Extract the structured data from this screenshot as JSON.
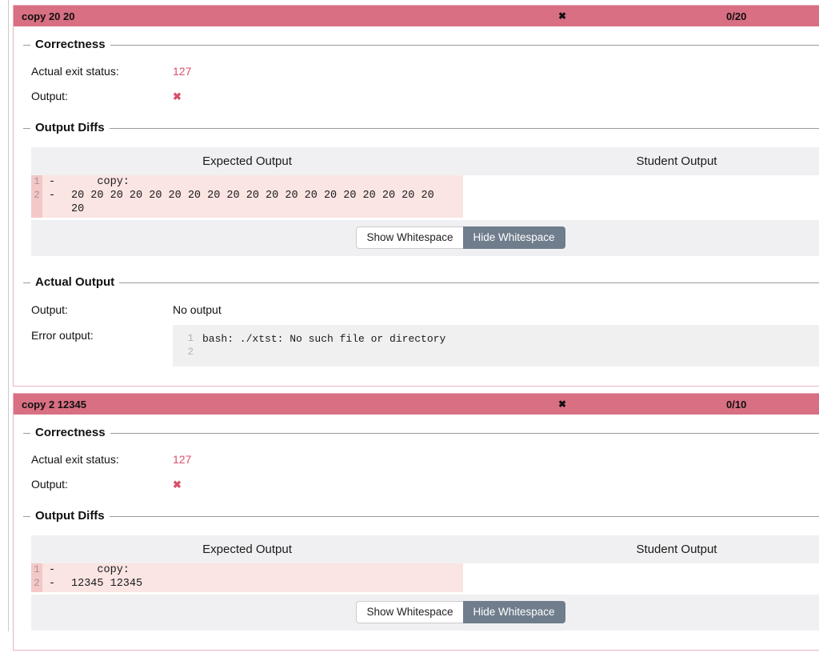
{
  "icons": {
    "x_mark": "✖"
  },
  "colors": {
    "header_bg": "#d96f82",
    "panel_border": "#e9b3be",
    "rose_text": "#d8506a",
    "diff_row_bg": "#fae5e3",
    "diff_gutter_bg": "#f4c8c8",
    "table_gray_bg": "#f0f0f2",
    "code_block_bg": "#f0f0f0",
    "hide_button_bg": "#6f7d8c"
  },
  "tests": [
    {
      "title": "copy 20 20",
      "score": "0/20",
      "correctness": {
        "legend": "Correctness",
        "exit_label": "Actual exit status:",
        "exit_value": "127",
        "output_label": "Output:"
      },
      "diffs": {
        "legend": "Output Diffs",
        "expected_header": "Expected Output",
        "student_header": "Student Output",
        "lines": [
          {
            "num": "1",
            "marker": "-",
            "text": "    copy:"
          },
          {
            "num": "2",
            "marker": "-",
            "text": "20 20 20 20 20 20 20 20 20 20 20 20 20 20 20 20 20 20 20 20"
          }
        ],
        "show_btn": "Show Whitespace",
        "hide_btn": "Hide Whitespace"
      },
      "actual": {
        "legend": "Actual Output",
        "output_label": "Output:",
        "output_value": "No output",
        "error_label": "Error output:",
        "error_lines": [
          {
            "num": "1",
            "text": "bash: ./xtst: No such file or directory"
          },
          {
            "num": "2",
            "text": ""
          }
        ]
      }
    },
    {
      "title": "copy 2 12345",
      "score": "0/10",
      "correctness": {
        "legend": "Correctness",
        "exit_label": "Actual exit status:",
        "exit_value": "127",
        "output_label": "Output:"
      },
      "diffs": {
        "legend": "Output Diffs",
        "expected_header": "Expected Output",
        "student_header": "Student Output",
        "lines": [
          {
            "num": "1",
            "marker": "-",
            "text": "    copy:"
          },
          {
            "num": "2",
            "marker": "-",
            "text": "12345 12345"
          }
        ],
        "show_btn": "Show Whitespace",
        "hide_btn": "Hide Whitespace"
      }
    }
  ]
}
